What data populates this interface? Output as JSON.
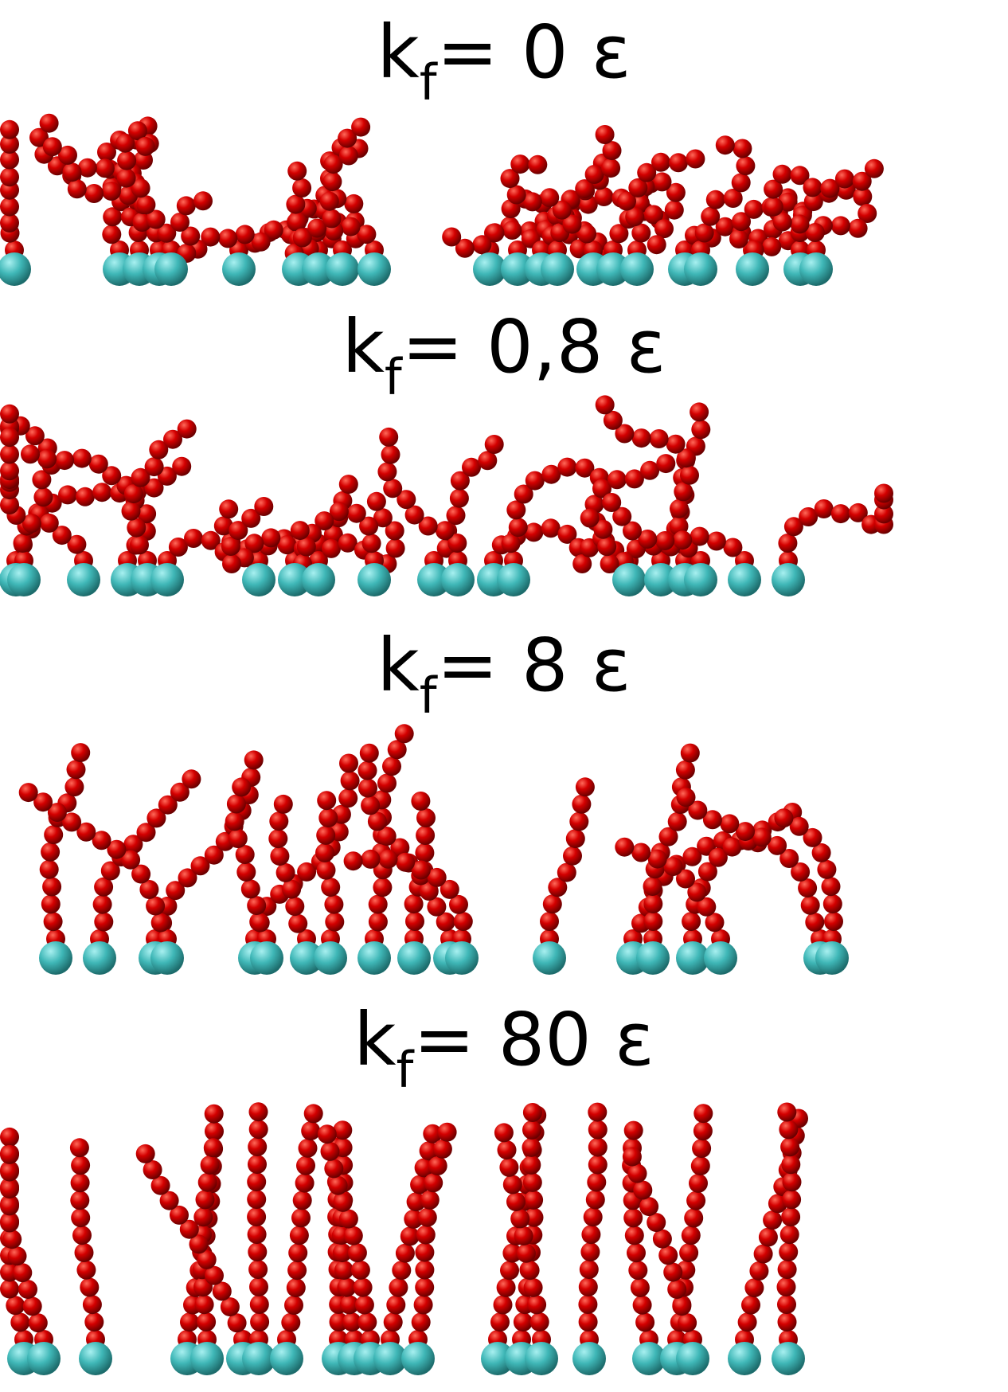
{
  "figure": {
    "panels": [
      {
        "label_main": "k",
        "label_sub": "f",
        "label_rest": "= 0 ε",
        "stiffness": 0
      },
      {
        "label_main": "k",
        "label_sub": "f",
        "label_rest": "= 0,8 ε",
        "stiffness": 0.8
      },
      {
        "label_main": "k",
        "label_sub": "f",
        "label_rest": "= 8 ε",
        "stiffness": 8
      },
      {
        "label_main": "k",
        "label_sub": "f",
        "label_rest": "= 80 ε",
        "stiffness": 80
      }
    ],
    "colors": {
      "monomer": "#d40000",
      "monomer_highlight": "#ff6a5a",
      "anchor": "#3fb7b7",
      "anchor_highlight": "#a8f0f0"
    }
  }
}
